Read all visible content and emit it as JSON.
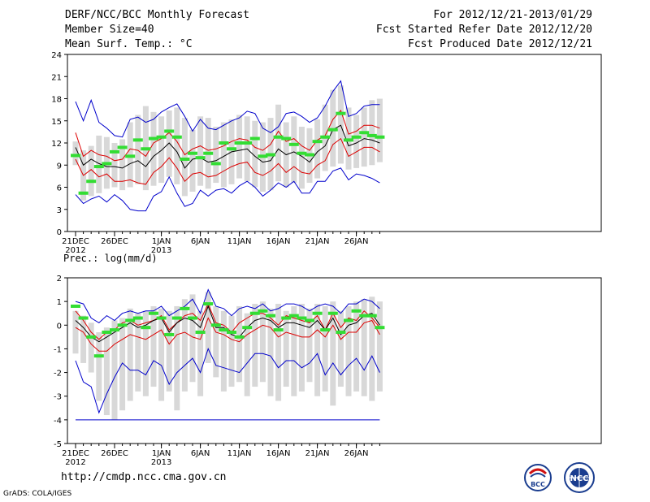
{
  "header": {
    "title": "DERF/NCC/BCC Monthly Forecast",
    "member": "Member Size=40",
    "variable": "Mean Surf. Temp.: °C",
    "period": "For 2012/12/21-2013/01/29",
    "started": "Fcst Started Refer Date 2012/12/20",
    "produced": "Fcst Produced Date 2012/12/21"
  },
  "footer": {
    "url": "http://cmdp.ncc.cma.gov.cn",
    "credit": "GrADS: COLA/IGES",
    "logo_left": "BCC",
    "logo_right": "NCC"
  },
  "colors": {
    "envelope": "#0000cc",
    "spread": "#dd0000",
    "mean": "#000000",
    "observed": "#33dd33",
    "box": "#d8d8d8"
  },
  "chart_data": [
    {
      "type": "line",
      "title": "Mean Surf. Temp.: °C",
      "days": 40,
      "xticks": [
        "21DEC",
        "26DEC",
        "1JAN",
        "6JAN",
        "11JAN",
        "16JAN",
        "21JAN",
        "26JAN"
      ],
      "xtick_days": [
        0,
        5,
        11,
        16,
        21,
        26,
        31,
        36
      ],
      "year_labels": [
        {
          "day": 0,
          "label": "2012"
        },
        {
          "day": 11,
          "label": "2013"
        }
      ],
      "ylim": [
        0,
        24
      ],
      "yticks": [
        0,
        3,
        6,
        9,
        12,
        15,
        18,
        21,
        24
      ],
      "box_top": [
        12.2,
        11.0,
        11.6,
        13.0,
        12.8,
        12.0,
        12.5,
        14.8,
        15.8,
        17.0,
        16.2,
        15.6,
        16.4,
        16.8,
        15.4,
        13.8,
        15.6,
        15.4,
        14.2,
        14.8,
        15.2,
        15.8,
        15.6,
        15.0,
        14.8,
        15.4,
        17.2,
        14.8,
        15.6,
        14.2,
        14.0,
        15.2,
        17.2,
        19.2,
        19.8,
        16.8,
        15.8,
        16.8,
        17.8,
        18.0
      ],
      "box_bottom": [
        9.0,
        4.2,
        4.8,
        5.2,
        5.8,
        6.0,
        5.6,
        6.0,
        6.4,
        5.6,
        6.2,
        6.6,
        7.4,
        6.4,
        4.8,
        5.4,
        6.2,
        5.8,
        6.6,
        6.0,
        6.4,
        7.2,
        6.8,
        6.0,
        5.4,
        5.6,
        6.8,
        6.0,
        6.6,
        5.8,
        6.6,
        7.2,
        8.2,
        8.8,
        9.2,
        8.4,
        8.6,
        8.8,
        9.0,
        9.4
      ],
      "series": [
        {
          "name": "max",
          "values": [
            17.6,
            15.0,
            17.8,
            14.8,
            14.0,
            13.0,
            12.8,
            15.2,
            15.5,
            14.8,
            15.2,
            16.2,
            16.8,
            17.3,
            15.6,
            13.6,
            15.2,
            14.0,
            13.8,
            14.4,
            15.0,
            15.4,
            16.3,
            16.0,
            14.0,
            13.4,
            14.2,
            16.0,
            16.2,
            15.6,
            14.8,
            15.4,
            17.0,
            19.0,
            20.4,
            15.6,
            16.0,
            17.0,
            17.2,
            17.2
          ]
        },
        {
          "name": "upper",
          "values": [
            13.4,
            10.2,
            11.0,
            10.4,
            10.2,
            9.6,
            9.8,
            11.2,
            11.0,
            10.2,
            12.0,
            12.6,
            13.4,
            12.2,
            10.4,
            11.2,
            11.6,
            11.0,
            11.2,
            11.6,
            12.2,
            12.6,
            12.4,
            11.4,
            11.0,
            11.8,
            13.6,
            12.2,
            12.6,
            11.6,
            11.0,
            12.4,
            13.0,
            15.2,
            16.4,
            13.2,
            13.6,
            14.4,
            14.4,
            14.0
          ]
        },
        {
          "name": "mean",
          "values": [
            11.4,
            9.0,
            9.8,
            9.2,
            8.8,
            8.8,
            8.6,
            9.2,
            9.6,
            8.8,
            10.2,
            11.0,
            12.0,
            10.8,
            8.6,
            9.8,
            10.0,
            9.4,
            9.6,
            10.2,
            10.8,
            11.0,
            11.2,
            10.2,
            9.4,
            9.6,
            11.2,
            10.4,
            10.8,
            10.2,
            9.4,
            10.8,
            11.6,
            13.8,
            14.4,
            11.6,
            12.0,
            12.6,
            12.4,
            12.0
          ]
        },
        {
          "name": "lower",
          "values": [
            9.8,
            7.6,
            8.4,
            7.4,
            7.8,
            6.8,
            6.8,
            7.0,
            6.6,
            6.4,
            8.0,
            8.8,
            10.0,
            8.6,
            6.8,
            7.8,
            8.0,
            7.4,
            7.6,
            8.2,
            8.8,
            9.2,
            9.4,
            8.0,
            7.6,
            8.2,
            9.2,
            8.0,
            8.8,
            8.0,
            7.8,
            9.0,
            9.6,
            11.8,
            12.6,
            10.2,
            10.8,
            11.4,
            11.4,
            10.8
          ]
        },
        {
          "name": "min",
          "values": [
            5.0,
            3.8,
            4.4,
            4.8,
            4.0,
            5.0,
            4.2,
            3.0,
            2.8,
            2.8,
            4.8,
            5.4,
            7.4,
            5.2,
            3.4,
            3.8,
            5.6,
            4.8,
            5.6,
            5.8,
            5.2,
            6.2,
            6.8,
            6.0,
            4.8,
            5.6,
            6.6,
            6.0,
            6.8,
            5.2,
            5.2,
            6.8,
            6.8,
            8.2,
            8.6,
            7.0,
            7.8,
            7.6,
            7.2,
            6.6
          ]
        }
      ],
      "observed": [
        10.3,
        5.2,
        6.8,
        8.8,
        9.2,
        10.8,
        11.4,
        10.2,
        12.4,
        11.2,
        12.6,
        12.8,
        13.6,
        12.8,
        9.8,
        10.6,
        10.0,
        10.6,
        9.2,
        12.0,
        11.2,
        12.0,
        12.0,
        12.6,
        10.2,
        10.4,
        12.8,
        12.6,
        11.8,
        10.6,
        10.4,
        12.2,
        12.8,
        13.8,
        16.0,
        12.4,
        12.8,
        13.4,
        13.0,
        12.8
      ]
    },
    {
      "type": "line",
      "title": "Prec.: log(mm/d)",
      "days": 40,
      "xticks": [
        "21DEC",
        "26DEC",
        "1JAN",
        "6JAN",
        "11JAN",
        "16JAN",
        "21JAN",
        "26JAN"
      ],
      "xtick_days": [
        0,
        5,
        11,
        16,
        21,
        26,
        31,
        36
      ],
      "year_labels": [
        {
          "day": 0,
          "label": "2012"
        },
        {
          "day": 11,
          "label": "2013"
        }
      ],
      "ylim": [
        -5,
        2
      ],
      "yticks": [
        -5,
        -4,
        -3,
        -2,
        -1,
        0,
        1,
        2
      ],
      "box_top": [
        0.6,
        0.4,
        0.1,
        -0.3,
        -0.1,
        0.2,
        0.3,
        0.7,
        0.5,
        0.6,
        0.8,
        0.7,
        0.6,
        0.8,
        1.1,
        1.3,
        0.6,
        1.4,
        0.8,
        0.6,
        0.4,
        0.8,
        0.5,
        0.9,
        1.0,
        0.7,
        0.9,
        0.6,
        0.8,
        0.9,
        0.7,
        0.9,
        0.8,
        1.0,
        0.6,
        0.8,
        1.0,
        1.1,
        1.2,
        1.0
      ],
      "box_bottom": [
        -1.2,
        -1.6,
        -2.0,
        -3.2,
        -3.8,
        -4.0,
        -3.6,
        -3.2,
        -2.8,
        -3.0,
        -2.6,
        -3.2,
        -2.8,
        -3.6,
        -2.8,
        -2.4,
        -3.0,
        -1.6,
        -2.2,
        -2.8,
        -2.6,
        -2.4,
        -3.0,
        -2.6,
        -2.4,
        -3.0,
        -3.2,
        -2.6,
        -3.0,
        -2.8,
        -2.4,
        -3.0,
        -2.8,
        -3.4,
        -2.6,
        -3.0,
        -2.8,
        -3.0,
        -3.2,
        -2.8
      ],
      "series": [
        {
          "name": "max",
          "values": [
            1.0,
            0.9,
            0.3,
            0.1,
            0.4,
            0.2,
            0.5,
            0.6,
            0.5,
            0.6,
            0.6,
            0.8,
            0.4,
            0.6,
            0.8,
            1.1,
            0.5,
            1.5,
            0.8,
            0.7,
            0.4,
            0.7,
            0.8,
            0.7,
            0.9,
            0.6,
            0.7,
            0.9,
            0.9,
            0.8,
            0.6,
            0.8,
            0.9,
            0.8,
            0.5,
            0.9,
            0.9,
            1.1,
            1.0,
            0.7
          ]
        },
        {
          "name": "upper",
          "values": [
            0.6,
            0.2,
            -0.3,
            -0.6,
            -0.3,
            -0.2,
            0.1,
            0.2,
            0.0,
            0.1,
            0.2,
            0.4,
            -0.2,
            0.1,
            0.4,
            0.5,
            0.2,
            0.9,
            0.1,
            0.0,
            -0.3,
            0.1,
            0.3,
            0.5,
            0.5,
            0.3,
            0.0,
            0.4,
            0.3,
            0.2,
            0.1,
            0.4,
            -0.2,
            0.5,
            -0.1,
            0.3,
            0.2,
            0.6,
            0.3,
            -0.1
          ]
        },
        {
          "name": "mean",
          "values": [
            0.2,
            -0.1,
            -0.5,
            -0.7,
            -0.5,
            -0.3,
            -0.1,
            0.1,
            -0.1,
            0.0,
            0.2,
            0.3,
            -0.3,
            0.1,
            0.3,
            0.2,
            -0.1,
            0.8,
            -0.1,
            -0.1,
            -0.4,
            -0.5,
            -0.1,
            0.2,
            0.3,
            0.2,
            -0.1,
            0.1,
            0.1,
            0.0,
            -0.1,
            0.2,
            -0.2,
            0.3,
            -0.4,
            0.0,
            0.1,
            0.4,
            0.5,
            0.0
          ]
        },
        {
          "name": "lower",
          "values": [
            -0.1,
            -0.3,
            -0.8,
            -1.1,
            -1.1,
            -0.8,
            -0.6,
            -0.4,
            -0.5,
            -0.6,
            -0.4,
            -0.2,
            -0.8,
            -0.4,
            -0.3,
            -0.5,
            -0.6,
            0.3,
            -0.3,
            -0.4,
            -0.6,
            -0.7,
            -0.4,
            -0.2,
            0.0,
            -0.1,
            -0.5,
            -0.3,
            -0.4,
            -0.5,
            -0.5,
            -0.2,
            -0.5,
            0.0,
            -0.6,
            -0.3,
            -0.3,
            0.1,
            0.2,
            -0.4
          ]
        },
        {
          "name": "min",
          "values": [
            -1.5,
            -2.4,
            -2.6,
            -3.7,
            -2.9,
            -2.2,
            -1.6,
            -1.9,
            -1.9,
            -2.1,
            -1.5,
            -1.7,
            -2.5,
            -2.0,
            -1.7,
            -1.4,
            -2.0,
            -1.0,
            -1.7,
            -1.8,
            -1.9,
            -2.0,
            -1.6,
            -1.2,
            -1.2,
            -1.3,
            -1.8,
            -1.5,
            -1.5,
            -1.8,
            -1.6,
            -1.2,
            -2.1,
            -1.6,
            -2.1,
            -1.7,
            -1.4,
            -1.9,
            -1.3,
            -2.0
          ]
        },
        {
          "name": "bottom",
          "values": [
            -4,
            -4,
            -4,
            -4,
            -4,
            -4,
            -4,
            -4,
            -4,
            -4,
            -4,
            -4,
            -4,
            -4,
            -4,
            -4,
            -4,
            -4,
            -4,
            -4,
            -4,
            -4,
            -4,
            -4,
            -4,
            -4,
            -4,
            -4,
            -4,
            -4,
            -4,
            -4,
            -4,
            -4,
            -4,
            -4,
            -4,
            -4,
            -4,
            -4
          ]
        }
      ],
      "observed": [
        0.8,
        0.3,
        -0.5,
        -1.3,
        -0.3,
        -0.2,
        0.0,
        0.2,
        0.3,
        -0.1,
        0.5,
        0.3,
        -0.4,
        0.3,
        0.7,
        0.3,
        -0.3,
        0.9,
        0.0,
        -0.2,
        -0.3,
        -0.5,
        -0.1,
        0.5,
        0.6,
        0.4,
        -0.2,
        0.3,
        0.4,
        0.3,
        0.2,
        0.5,
        -0.2,
        0.5,
        -0.3,
        0.2,
        0.6,
        0.4,
        0.4,
        -0.1
      ]
    }
  ]
}
